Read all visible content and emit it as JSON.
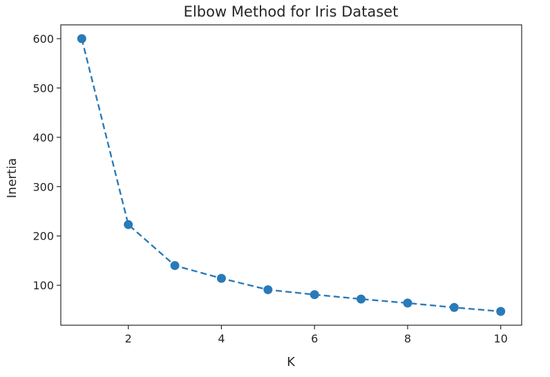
{
  "chart_data": {
    "type": "line",
    "title": "Elbow Method for Iris Dataset",
    "xlabel": "K",
    "ylabel": "Inertia",
    "x": [
      1,
      2,
      3,
      4,
      5,
      6,
      7,
      8,
      9,
      10
    ],
    "series": [
      {
        "values": [
          600,
          223,
          140,
          114,
          91,
          81,
          72,
          64,
          55,
          47
        ],
        "color": "#2a7ab8",
        "line_style": "dashed",
        "marker": "circle"
      }
    ],
    "xlim": [
      0.55,
      10.45
    ],
    "ylim": [
      19,
      628
    ],
    "xticks": [
      2,
      4,
      6,
      8,
      10
    ],
    "yticks": [
      100,
      200,
      300,
      400,
      500,
      600
    ],
    "grid": false,
    "legend": "none"
  }
}
